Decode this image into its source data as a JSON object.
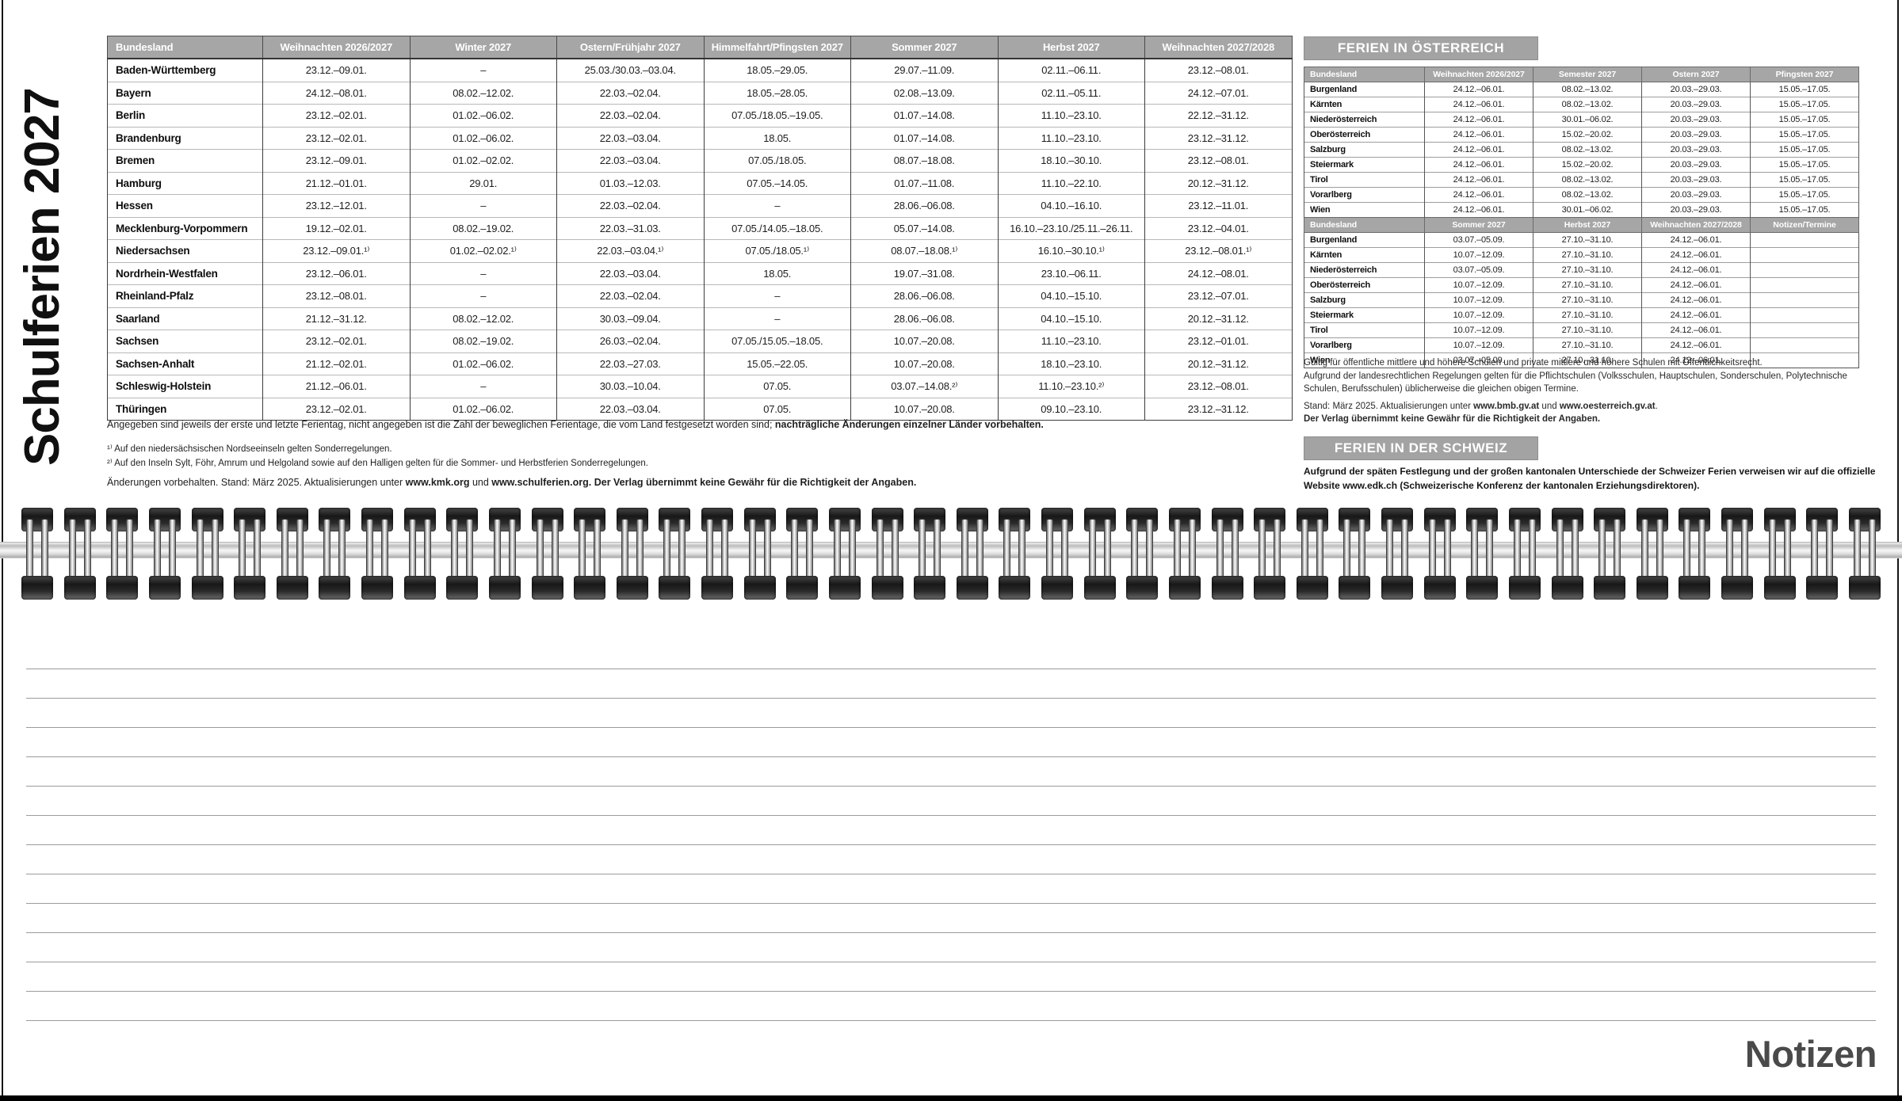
{
  "page": {
    "title_vertical": "Schulferien 2027",
    "notes_label": "Notizen"
  },
  "colors": {
    "header_gray": "#a6a6a6",
    "bar_gray": "#a3a3a3",
    "line_gray": "#9b9b9b",
    "notizen_gray": "#4a4a4a",
    "text_dark": "#1c1c1c"
  },
  "german_table": {
    "headers": [
      "Bundesland",
      "Weihnachten 2026/2027",
      "Winter 2027",
      "Ostern/Frühjahr 2027",
      "Himmelfahrt/Pfingsten 2027",
      "Sommer 2027",
      "Herbst 2027",
      "Weihnachten 2027/2028"
    ],
    "rows": [
      {
        "state": "Baden-Württemberg",
        "dates": [
          "23.12.–09.01.",
          "–",
          "25.03./30.03.–03.04.",
          "18.05.–29.05.",
          "29.07.–11.09.",
          "02.11.–06.11.",
          "23.12.–08.01."
        ]
      },
      {
        "state": "Bayern",
        "dates": [
          "24.12.–08.01.",
          "08.02.–12.02.",
          "22.03.–02.04.",
          "18.05.–28.05.",
          "02.08.–13.09.",
          "02.11.–05.11.",
          "24.12.–07.01."
        ]
      },
      {
        "state": "Berlin",
        "dates": [
          "23.12.–02.01.",
          "01.02.–06.02.",
          "22.03.–02.04.",
          "07.05./18.05.–19.05.",
          "01.07.–14.08.",
          "11.10.–23.10.",
          "22.12.–31.12."
        ]
      },
      {
        "state": "Brandenburg",
        "dates": [
          "23.12.–02.01.",
          "01.02.–06.02.",
          "22.03.–03.04.",
          "18.05.",
          "01.07.–14.08.",
          "11.10.–23.10.",
          "23.12.–31.12."
        ]
      },
      {
        "state": "Bremen",
        "dates": [
          "23.12.–09.01.",
          "01.02.–02.02.",
          "22.03.–03.04.",
          "07.05./18.05.",
          "08.07.–18.08.",
          "18.10.–30.10.",
          "23.12.–08.01."
        ]
      },
      {
        "state": "Hamburg",
        "dates": [
          "21.12.–01.01.",
          "29.01.",
          "01.03.–12.03.",
          "07.05.–14.05.",
          "01.07.–11.08.",
          "11.10.–22.10.",
          "20.12.–31.12."
        ]
      },
      {
        "state": "Hessen",
        "dates": [
          "23.12.–12.01.",
          "–",
          "22.03.–02.04.",
          "–",
          "28.06.–06.08.",
          "04.10.–16.10.",
          "23.12.–11.01."
        ]
      },
      {
        "state": "Mecklenburg-Vorpommern",
        "dates": [
          "19.12.–02.01.",
          "08.02.–19.02.",
          "22.03.–31.03.",
          "07.05./14.05.–18.05.",
          "05.07.–14.08.",
          "16.10.–23.10./25.11.–26.11.",
          "23.12.–04.01."
        ]
      },
      {
        "state": "Niedersachsen",
        "dates": [
          "23.12.–09.01.¹⁾",
          "01.02.–02.02.¹⁾",
          "22.03.–03.04.¹⁾",
          "07.05./18.05.¹⁾",
          "08.07.–18.08.¹⁾",
          "16.10.–30.10.¹⁾",
          "23.12.–08.01.¹⁾"
        ]
      },
      {
        "state": "Nordrhein-Westfalen",
        "dates": [
          "23.12.–06.01.",
          "–",
          "22.03.–03.04.",
          "18.05.",
          "19.07.–31.08.",
          "23.10.–06.11.",
          "24.12.–08.01."
        ]
      },
      {
        "state": "Rheinland-Pfalz",
        "dates": [
          "23.12.–08.01.",
          "–",
          "22.03.–02.04.",
          "–",
          "28.06.–06.08.",
          "04.10.–15.10.",
          "23.12.–07.01."
        ]
      },
      {
        "state": "Saarland",
        "dates": [
          "21.12.–31.12.",
          "08.02.–12.02.",
          "30.03.–09.04.",
          "–",
          "28.06.–06.08.",
          "04.10.–15.10.",
          "20.12.–31.12."
        ]
      },
      {
        "state": "Sachsen",
        "dates": [
          "23.12.–02.01.",
          "08.02.–19.02.",
          "26.03.–02.04.",
          "07.05./15.05.–18.05.",
          "10.07.–20.08.",
          "11.10.–23.10.",
          "23.12.–01.01."
        ]
      },
      {
        "state": "Sachsen-Anhalt",
        "dates": [
          "21.12.–02.01.",
          "01.02.–06.02.",
          "22.03.–27.03.",
          "15.05.–22.05.",
          "10.07.–20.08.",
          "18.10.–23.10.",
          "20.12.–31.12."
        ]
      },
      {
        "state": "Schleswig-Holstein",
        "dates": [
          "21.12.–06.01.",
          "–",
          "30.03.–10.04.",
          "07.05.",
          "03.07.–14.08.²⁾",
          "11.10.–23.10.²⁾",
          "23.12.–08.01."
        ]
      },
      {
        "state": "Thüringen",
        "dates": [
          "23.12.–02.01.",
          "01.02.–06.02.",
          "22.03.–03.04.",
          "07.05.",
          "10.07.–20.08.",
          "09.10.–23.10.",
          "23.12.–31.12."
        ]
      }
    ]
  },
  "german_footnotes": {
    "intro": [
      {
        "text": "Angegeben sind jeweils der erste und letzte Ferientag, nicht angegeben ist die Zahl der beweglichen Ferientage, die vom Land festgesetzt worden sind; ",
        "bold": false
      },
      {
        "text": "nachträgliche Änderungen einzelner Länder vorbehalten.",
        "bold": true
      }
    ],
    "fn1": [
      {
        "text": "¹⁾ Auf den niedersächsischen Nordseeinseln gelten Sonderregelungen.",
        "bold": false
      }
    ],
    "fn2": [
      {
        "text": "²⁾ Auf den Inseln Sylt, Föhr, Amrum und Helgoland sowie auf den Halligen gelten für die Sommer- und Herbstferien Sonderregelungen.",
        "bold": false
      }
    ],
    "status": [
      {
        "text": "Änderungen vorbehalten. Stand: März 2025. Aktualisierungen unter ",
        "bold": false
      },
      {
        "text": "www.kmk.org",
        "bold": true
      },
      {
        "text": " und ",
        "bold": false
      },
      {
        "text": "www.schulferien.org.",
        "bold": true
      },
      {
        "text": " ",
        "bold": false
      },
      {
        "text": "Der Verlag übernimmt keine Gewähr für die Richtigkeit der Angaben.",
        "bold": true
      }
    ]
  },
  "austria": {
    "section_title": "FERIEN IN ÖSTERREICH",
    "part1": {
      "headers": [
        "Bundesland",
        "Weihnachten 2026/2027",
        "Semester 2027",
        "Ostern 2027",
        "Pfingsten 2027"
      ],
      "rows": [
        {
          "state": "Burgenland",
          "dates": [
            "24.12.–06.01.",
            "08.02.–13.02.",
            "20.03.–29.03.",
            "15.05.–17.05."
          ]
        },
        {
          "state": "Kärnten",
          "dates": [
            "24.12.–06.01.",
            "08.02.–13.02.",
            "20.03.–29.03.",
            "15.05.–17.05."
          ]
        },
        {
          "state": "Niederösterreich",
          "dates": [
            "24.12.–06.01.",
            "30.01.–06.02.",
            "20.03.–29.03.",
            "15.05.–17.05."
          ]
        },
        {
          "state": "Oberösterreich",
          "dates": [
            "24.12.–06.01.",
            "15.02.–20.02.",
            "20.03.–29.03.",
            "15.05.–17.05."
          ]
        },
        {
          "state": "Salzburg",
          "dates": [
            "24.12.–06.01.",
            "08.02.–13.02.",
            "20.03.–29.03.",
            "15.05.–17.05."
          ]
        },
        {
          "state": "Steiermark",
          "dates": [
            "24.12.–06.01.",
            "15.02.–20.02.",
            "20.03.–29.03.",
            "15.05.–17.05."
          ]
        },
        {
          "state": "Tirol",
          "dates": [
            "24.12.–06.01.",
            "08.02.–13.02.",
            "20.03.–29.03.",
            "15.05.–17.05."
          ]
        },
        {
          "state": "Vorarlberg",
          "dates": [
            "24.12.–06.01.",
            "08.02.–13.02.",
            "20.03.–29.03.",
            "15.05.–17.05."
          ]
        },
        {
          "state": "Wien",
          "dates": [
            "24.12.–06.01.",
            "30.01.–06.02.",
            "20.03.–29.03.",
            "15.05.–17.05."
          ]
        }
      ]
    },
    "part2": {
      "headers": [
        "Bundesland",
        "Sommer 2027",
        "Herbst 2027",
        "Weihnachten 2027/2028",
        "Notizen/Termine"
      ],
      "rows": [
        {
          "state": "Burgenland",
          "dates": [
            "03.07.–05.09.",
            "27.10.–31.10.",
            "24.12.–06.01.",
            ""
          ]
        },
        {
          "state": "Kärnten",
          "dates": [
            "10.07.–12.09.",
            "27.10.–31.10.",
            "24.12.–06.01.",
            ""
          ]
        },
        {
          "state": "Niederösterreich",
          "dates": [
            "03.07.–05.09.",
            "27.10.–31.10.",
            "24.12.–06.01.",
            ""
          ]
        },
        {
          "state": "Oberösterreich",
          "dates": [
            "10.07.–12.09.",
            "27.10.–31.10.",
            "24.12.–06.01.",
            ""
          ]
        },
        {
          "state": "Salzburg",
          "dates": [
            "10.07.–12.09.",
            "27.10.–31.10.",
            "24.12.–06.01.",
            ""
          ]
        },
        {
          "state": "Steiermark",
          "dates": [
            "10.07.–12.09.",
            "27.10.–31.10.",
            "24.12.–06.01.",
            ""
          ]
        },
        {
          "state": "Tirol",
          "dates": [
            "10.07.–12.09.",
            "27.10.–31.10.",
            "24.12.–06.01.",
            ""
          ]
        },
        {
          "state": "Vorarlberg",
          "dates": [
            "10.07.–12.09.",
            "27.10.–31.10.",
            "24.12.–06.01.",
            ""
          ]
        },
        {
          "state": "Wien",
          "dates": [
            "03.07.–05.09.",
            "27.10.–31.10.",
            "24.12.–06.01.",
            ""
          ]
        }
      ]
    },
    "note1": "Gültig für öffentliche mittlere und höhere Schulen und private mittlere und höhere Schulen mit Öffentlichkeitsrecht.",
    "note2": "Aufgrund der landesrechtlichen Regelungen gelten für die Pflichtschulen (Volksschulen, Hauptschulen, Sonderschulen, Polytechnische Schulen, Berufsschulen) üblicherweise die gleichen obigen Termine.",
    "note3": [
      {
        "text": "Stand: März 2025. Aktualisierungen unter ",
        "bold": false
      },
      {
        "text": "www.bmb.gv.at",
        "bold": true
      },
      {
        "text": " und ",
        "bold": false
      },
      {
        "text": "www.oesterreich.gv.at",
        "bold": true
      },
      {
        "text": ".",
        "bold": false
      }
    ],
    "note4": "Der Verlag übernimmt keine Gewähr für die Richtigkeit der Angaben."
  },
  "switzerland": {
    "section_title": "FERIEN IN DER SCHWEIZ",
    "note": "Aufgrund der späten Festlegung und der großen kantonalen Unterschiede der Schweizer Ferien verweisen wir auf die offizielle Website www.edk.ch (Schweizerische Konferenz der kantonalen Erziehungsdirektoren)."
  }
}
